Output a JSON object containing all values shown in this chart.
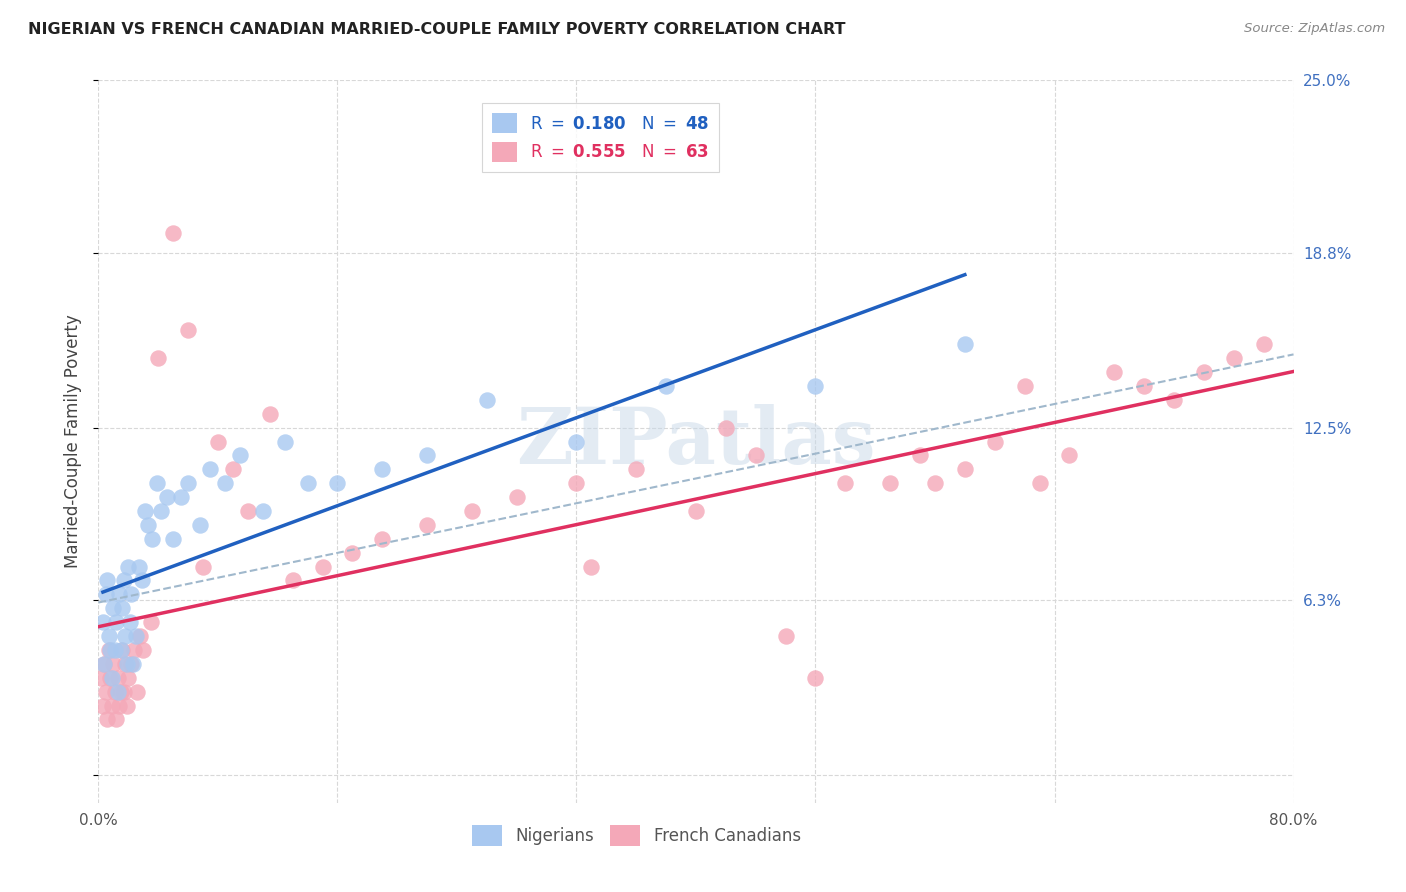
{
  "title": "NIGERIAN VS FRENCH CANADIAN MARRIED-COUPLE FAMILY POVERTY CORRELATION CHART",
  "source": "Source: ZipAtlas.com",
  "ylabel": "Married-Couple Family Poverty",
  "xlim": [
    0,
    80
  ],
  "ylim": [
    -1,
    25
  ],
  "yticks": [
    0,
    6.3,
    12.5,
    18.8,
    25.0
  ],
  "ytick_labels": [
    "",
    "6.3%",
    "12.5%",
    "18.8%",
    "25.0%"
  ],
  "background_color": "#ffffff",
  "grid_color": "#d8d8d8",
  "watermark": "ZIPatlas",
  "nigerian_color": "#a8c8f0",
  "french_color": "#f4a8b8",
  "nigerian_line_color": "#2060c0",
  "french_line_color": "#e03060",
  "dashed_line_color": "#a0b8cc",
  "nigerian_x": [
    0.3,
    0.4,
    0.5,
    0.6,
    0.7,
    0.8,
    0.9,
    1.0,
    1.1,
    1.2,
    1.3,
    1.4,
    1.5,
    1.6,
    1.7,
    1.8,
    1.9,
    2.0,
    2.1,
    2.2,
    2.3,
    2.5,
    2.7,
    2.9,
    3.1,
    3.3,
    3.6,
    3.9,
    4.2,
    4.6,
    5.0,
    5.5,
    6.0,
    6.8,
    7.5,
    8.5,
    9.5,
    11.0,
    12.5,
    14.0,
    16.0,
    19.0,
    22.0,
    26.0,
    32.0,
    38.0,
    48.0,
    58.0
  ],
  "nigerian_y": [
    5.5,
    4.0,
    6.5,
    7.0,
    5.0,
    4.5,
    3.5,
    6.0,
    4.5,
    5.5,
    3.0,
    6.5,
    4.5,
    6.0,
    7.0,
    5.0,
    4.0,
    7.5,
    5.5,
    6.5,
    4.0,
    5.0,
    7.5,
    7.0,
    9.5,
    9.0,
    8.5,
    10.5,
    9.5,
    10.0,
    8.5,
    10.0,
    10.5,
    9.0,
    11.0,
    10.5,
    11.5,
    9.5,
    12.0,
    10.5,
    10.5,
    11.0,
    11.5,
    13.5,
    12.0,
    14.0,
    14.0,
    15.5
  ],
  "french_x": [
    0.2,
    0.3,
    0.4,
    0.5,
    0.6,
    0.7,
    0.8,
    0.9,
    1.0,
    1.1,
    1.2,
    1.3,
    1.4,
    1.5,
    1.6,
    1.7,
    1.8,
    1.9,
    2.0,
    2.2,
    2.4,
    2.6,
    2.8,
    3.0,
    3.5,
    4.0,
    5.0,
    6.0,
    7.0,
    8.0,
    9.0,
    10.0,
    11.5,
    13.0,
    15.0,
    17.0,
    19.0,
    22.0,
    25.0,
    28.0,
    32.0,
    36.0,
    40.0,
    44.0,
    48.0,
    50.0,
    53.0,
    55.0,
    58.0,
    60.0,
    63.0,
    65.0,
    68.0,
    70.0,
    72.0,
    74.0,
    76.0,
    78.0,
    33.0,
    42.0,
    46.0,
    56.0,
    62.0
  ],
  "french_y": [
    3.5,
    2.5,
    4.0,
    3.0,
    2.0,
    4.5,
    3.5,
    2.5,
    4.0,
    3.0,
    2.0,
    3.5,
    2.5,
    3.0,
    4.5,
    3.0,
    4.0,
    2.5,
    3.5,
    4.0,
    4.5,
    3.0,
    5.0,
    4.5,
    5.5,
    15.0,
    19.5,
    16.0,
    7.5,
    12.0,
    11.0,
    9.5,
    13.0,
    7.0,
    7.5,
    8.0,
    8.5,
    9.0,
    9.5,
    10.0,
    10.5,
    11.0,
    9.5,
    11.5,
    3.5,
    10.5,
    10.5,
    11.5,
    11.0,
    12.0,
    10.5,
    11.5,
    14.5,
    14.0,
    13.5,
    14.5,
    15.0,
    15.5,
    7.5,
    12.5,
    5.0,
    10.5,
    14.0
  ]
}
